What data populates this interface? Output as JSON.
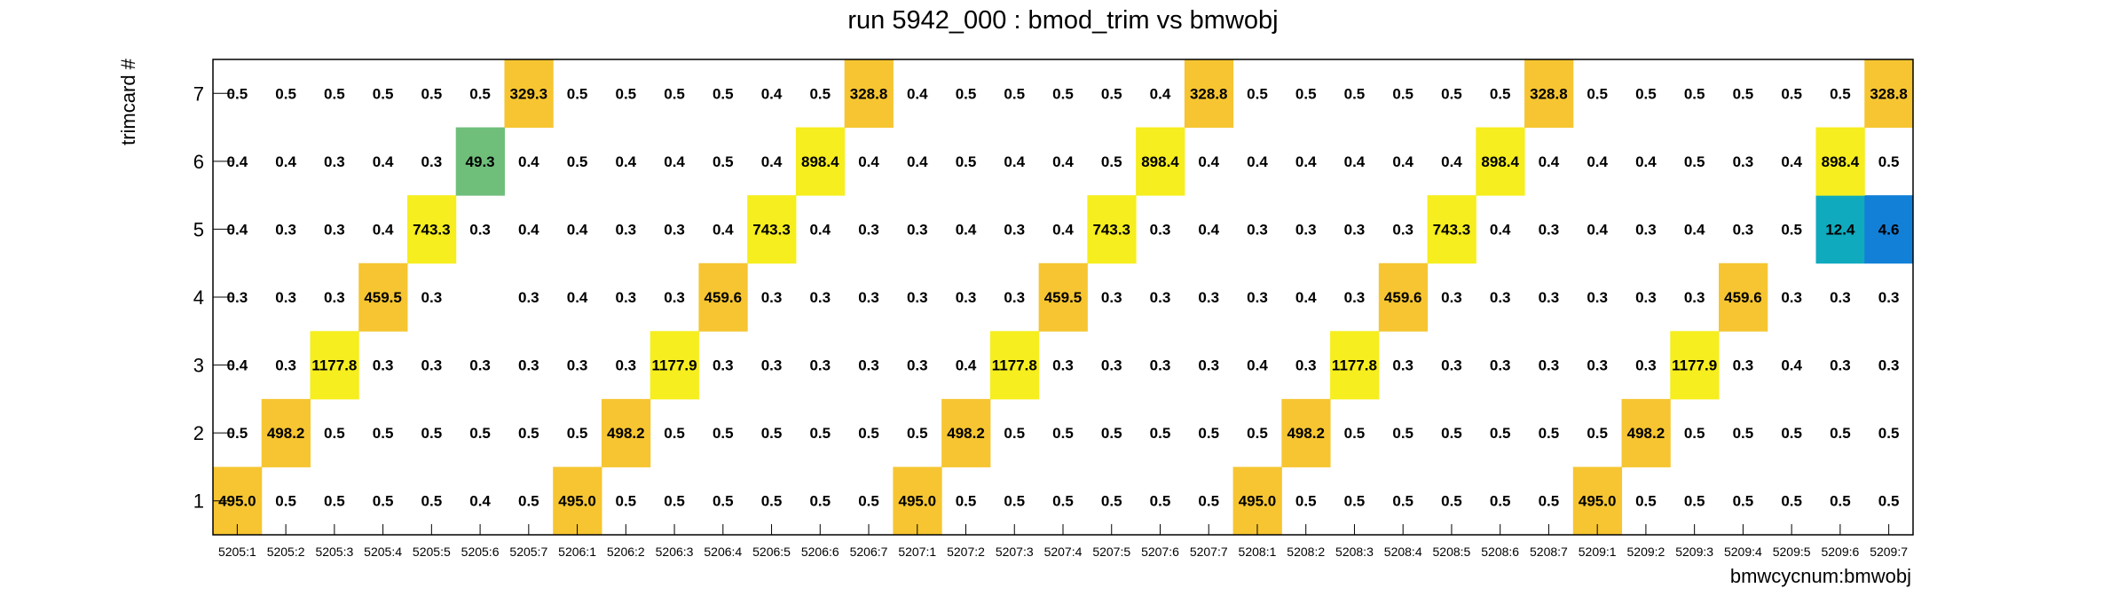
{
  "chart_data": {
    "type": "heatmap",
    "title": "run 5942_000 : bmod_trim vs bmwobj",
    "xlabel": "bmwcycnum:bmwobj",
    "ylabel": "trimcard #",
    "x_categories": [
      "5205:1",
      "5205:2",
      "5205:3",
      "5205:4",
      "5205:5",
      "5205:6",
      "5205:7",
      "5206:1",
      "5206:2",
      "5206:3",
      "5206:4",
      "5206:5",
      "5206:6",
      "5206:7",
      "5207:1",
      "5207:2",
      "5207:3",
      "5207:4",
      "5207:5",
      "5207:6",
      "5207:7",
      "5208:1",
      "5208:2",
      "5208:3",
      "5208:4",
      "5208:5",
      "5208:6",
      "5208:7",
      "5209:1",
      "5209:2",
      "5209:3",
      "5209:4",
      "5209:5",
      "5209:6",
      "5209:7"
    ],
    "y_categories": [
      "1",
      "2",
      "3",
      "4",
      "5",
      "6",
      "7"
    ],
    "rows": [
      {
        "y": "1",
        "labels": [
          "495.0",
          "0.5",
          "0.5",
          "0.5",
          "0.5",
          "0.4",
          "0.5",
          "495.0",
          "0.5",
          "0.5",
          "0.5",
          "0.5",
          "0.5",
          "0.5",
          "495.0",
          "0.5",
          "0.5",
          "0.5",
          "0.5",
          "0.5",
          "0.5",
          "495.0",
          "0.5",
          "0.5",
          "0.5",
          "0.5",
          "0.5",
          "0.5",
          "495.0",
          "0.5",
          "0.5",
          "0.5",
          "0.5",
          "0.5",
          "0.5"
        ]
      },
      {
        "y": "2",
        "labels": [
          "0.5",
          "498.2",
          "0.5",
          "0.5",
          "0.5",
          "0.5",
          "0.5",
          "0.5",
          "498.2",
          "0.5",
          "0.5",
          "0.5",
          "0.5",
          "0.5",
          "0.5",
          "498.2",
          "0.5",
          "0.5",
          "0.5",
          "0.5",
          "0.5",
          "0.5",
          "498.2",
          "0.5",
          "0.5",
          "0.5",
          "0.5",
          "0.5",
          "0.5",
          "498.2",
          "0.5",
          "0.5",
          "0.5",
          "0.5",
          "0.5"
        ]
      },
      {
        "y": "3",
        "labels": [
          "0.4",
          "0.3",
          "1177.8",
          "0.3",
          "0.3",
          "0.3",
          "0.3",
          "0.3",
          "0.3",
          "1177.9",
          "0.3",
          "0.3",
          "0.3",
          "0.3",
          "0.3",
          "0.4",
          "1177.8",
          "0.3",
          "0.3",
          "0.3",
          "0.3",
          "0.4",
          "0.3",
          "1177.8",
          "0.3",
          "0.3",
          "0.3",
          "0.3",
          "0.3",
          "0.3",
          "1177.9",
          "0.3",
          "0.4",
          "0.3",
          "0.3"
        ]
      },
      {
        "y": "4",
        "labels": [
          "0.3",
          "0.3",
          "0.3",
          "459.5",
          "0.3",
          "",
          "0.3",
          "0.4",
          "0.3",
          "0.3",
          "459.6",
          "0.3",
          "0.3",
          "0.3",
          "0.3",
          "0.3",
          "0.3",
          "459.5",
          "0.3",
          "0.3",
          "0.3",
          "0.3",
          "0.4",
          "0.3",
          "459.6",
          "0.3",
          "0.3",
          "0.3",
          "0.3",
          "0.3",
          "0.3",
          "459.6",
          "0.3",
          "0.3",
          "0.3"
        ]
      },
      {
        "y": "5",
        "labels": [
          "0.4",
          "0.3",
          "0.3",
          "0.4",
          "743.3",
          "0.3",
          "0.4",
          "0.4",
          "0.3",
          "0.3",
          "0.4",
          "743.3",
          "0.4",
          "0.3",
          "0.3",
          "0.4",
          "0.3",
          "0.4",
          "743.3",
          "0.3",
          "0.4",
          "0.3",
          "0.3",
          "0.3",
          "0.3",
          "743.3",
          "0.4",
          "0.3",
          "0.4",
          "0.3",
          "0.4",
          "0.3",
          "0.5",
          "12.4",
          "4.6"
        ]
      },
      {
        "y": "6",
        "labels": [
          "0.4",
          "0.4",
          "0.3",
          "0.4",
          "0.3",
          "49.3",
          "0.4",
          "0.5",
          "0.4",
          "0.4",
          "0.5",
          "0.4",
          "898.4",
          "0.4",
          "0.4",
          "0.5",
          "0.4",
          "0.4",
          "0.5",
          "898.4",
          "0.4",
          "0.4",
          "0.4",
          "0.4",
          "0.4",
          "0.4",
          "898.4",
          "0.4",
          "0.4",
          "0.4",
          "0.5",
          "0.3",
          "0.4",
          "898.4",
          "0.5"
        ]
      },
      {
        "y": "7",
        "labels": [
          "0.5",
          "0.5",
          "0.5",
          "0.5",
          "0.5",
          "0.5",
          "329.3",
          "0.5",
          "0.5",
          "0.5",
          "0.5",
          "0.4",
          "0.5",
          "328.8",
          "0.4",
          "0.5",
          "0.5",
          "0.5",
          "0.5",
          "0.4",
          "328.8",
          "0.5",
          "0.5",
          "0.5",
          "0.5",
          "0.5",
          "0.5",
          "328.8",
          "0.5",
          "0.5",
          "0.5",
          "0.5",
          "0.5",
          "0.5",
          "328.8"
        ]
      }
    ],
    "color_scale": [
      {
        "min": 0,
        "color": ""
      },
      {
        "min": 2,
        "color": "#1380d8"
      },
      {
        "min": 8,
        "color": "#0faabe"
      },
      {
        "min": 30,
        "color": "#6fbf7b"
      },
      {
        "min": 200,
        "color": "#f6c531"
      },
      {
        "min": 600,
        "color": "#f6ee1e"
      }
    ]
  }
}
